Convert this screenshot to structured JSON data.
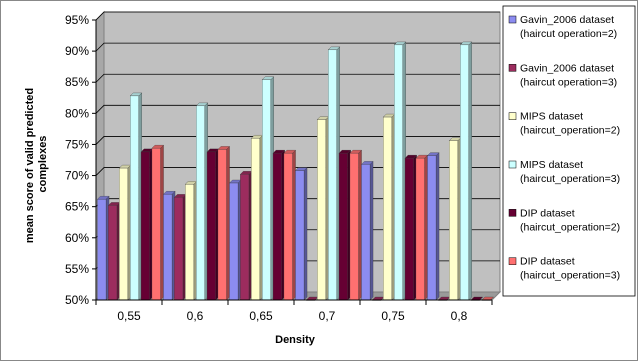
{
  "chart_data": {
    "type": "bar",
    "title": "",
    "xlabel": "Density",
    "ylabel": "mean score of valid predicted complexes",
    "ylabel_lines": [
      "mean score of valid predicted",
      "complexes"
    ],
    "ylim": [
      50,
      95
    ],
    "yticks": [
      50,
      55,
      60,
      65,
      70,
      75,
      80,
      85,
      90,
      95
    ],
    "ytick_labels": [
      "50%",
      "55%",
      "60%",
      "65%",
      "70%",
      "75%",
      "80%",
      "85%",
      "90%",
      "95%"
    ],
    "categories": [
      "0,55",
      "0,6",
      "0,65",
      "0,7",
      "0,75",
      "0,8"
    ],
    "grid": true,
    "legend_position": "right",
    "style": "3d-clustered-column",
    "series": [
      {
        "name": "Gavin_2006 dataset (haircut operation=2)",
        "legend_lines": [
          "Gavin_2006 dataset",
          "(haircut operation=2)"
        ],
        "color": "#8c8cf0",
        "values": [
          66.2,
          67.0,
          68.8,
          70.8,
          71.8,
          73.2
        ]
      },
      {
        "name": "Gavin_2006 dataset (haircut operation=3)",
        "legend_lines": [
          "Gavin_2006 dataset",
          "(haircut operation=3)"
        ],
        "color": "#9c2c5e",
        "values": [
          65.2,
          66.5,
          70.2,
          50.0,
          50.0,
          50.0
        ]
      },
      {
        "name": "MIPS dataset (haircut_operation=2)",
        "legend_lines": [
          "MIPS dataset",
          "(haircut_operation=2)"
        ],
        "color": "#ffffcc",
        "values": [
          71.2,
          68.6,
          76.0,
          79.0,
          79.4,
          75.6
        ]
      },
      {
        "name": "MIPS dataset (haircut_operation=3)",
        "legend_lines": [
          "MIPS dataset",
          "(haircut_operation=3)"
        ],
        "color": "#ccffff",
        "values": [
          82.8,
          81.2,
          85.4,
          90.2,
          91.0,
          91.0
        ]
      },
      {
        "name": "DIP dataset (haircut_operation=2)",
        "legend_lines": [
          "DIP dataset",
          "(haircut_operation=2)"
        ],
        "color": "#660033",
        "values": [
          73.8,
          73.8,
          73.6,
          73.6,
          72.8,
          50.0
        ]
      },
      {
        "name": "DIP dataset (haircut_operation=3)",
        "legend_lines": [
          "DIP dataset",
          "(haircut_operation=3)"
        ],
        "color": "#ff7070",
        "values": [
          74.4,
          74.2,
          73.6,
          73.6,
          72.8,
          50.0
        ]
      }
    ]
  }
}
